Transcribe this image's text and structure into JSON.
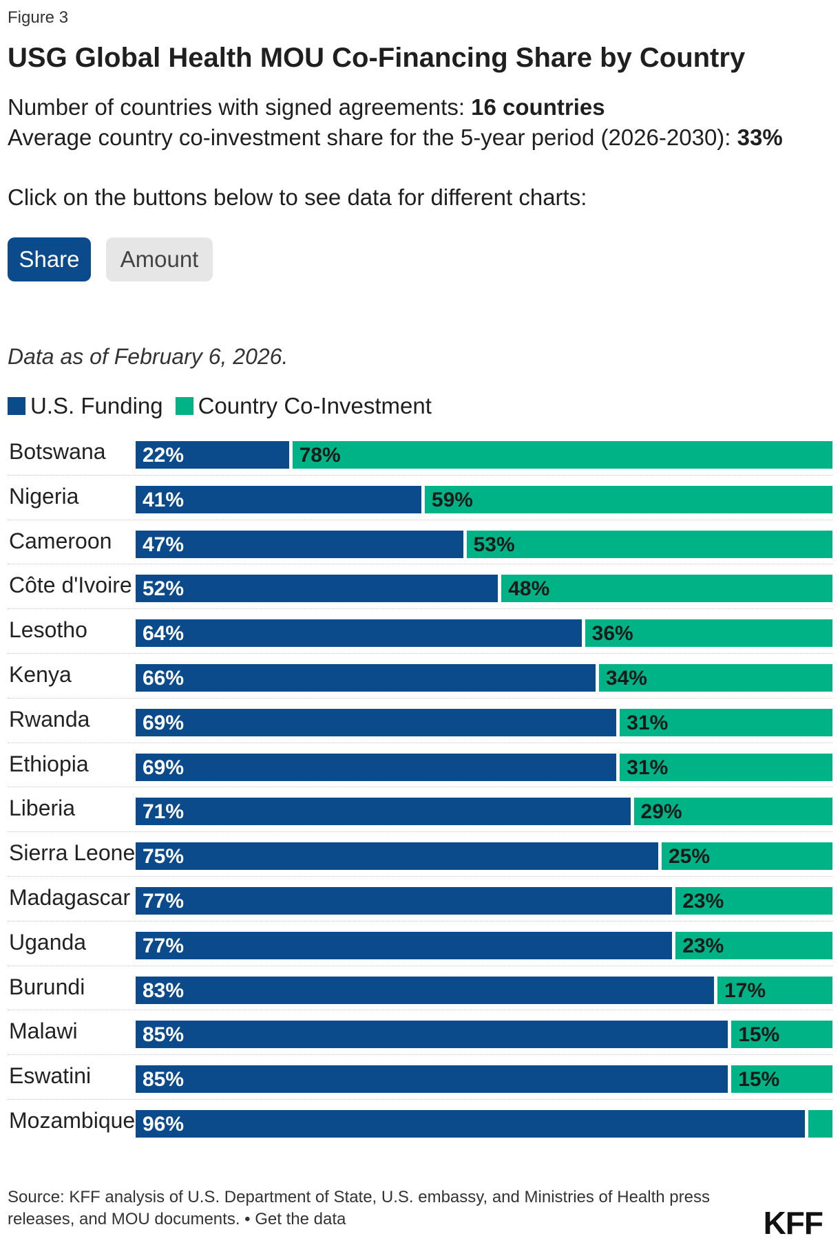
{
  "figure_label": "Figure 3",
  "title": "USG Global Health MOU Co-Financing Share by Country",
  "summary": {
    "line1_prefix": "Number of countries with signed agreements: ",
    "line1_value": "16 countries",
    "line2_prefix": "Average country co-investment share for the 5-year period (2026-2030): ",
    "line2_value": "33%"
  },
  "instructions": "Click on the buttons below to see data for different charts:",
  "buttons": {
    "share": "Share",
    "amount": "Amount",
    "active": "share"
  },
  "date_note": "Data as of February 6, 2026.",
  "colors": {
    "us_funding": "#0b4a8b",
    "co_investment": "#00b386"
  },
  "chart_data": {
    "type": "bar",
    "orientation": "horizontal",
    "stacked": true,
    "xlim": [
      0,
      100
    ],
    "unit": "%",
    "legend": [
      "U.S. Funding",
      "Country Co-Investment"
    ],
    "legend_position": "top-left",
    "categories": [
      "Botswana",
      "Nigeria",
      "Cameroon",
      "Côte d'Ivoire",
      "Lesotho",
      "Kenya",
      "Rwanda",
      "Ethiopia",
      "Liberia",
      "Sierra Leone",
      "Madagascar",
      "Uganda",
      "Burundi",
      "Malawi",
      "Eswatini",
      "Mozambique"
    ],
    "series": [
      {
        "name": "U.S. Funding",
        "values": [
          22,
          41,
          47,
          52,
          64,
          66,
          69,
          69,
          71,
          75,
          77,
          77,
          83,
          85,
          85,
          96
        ]
      },
      {
        "name": "Country Co-Investment",
        "values": [
          78,
          59,
          53,
          48,
          36,
          34,
          31,
          31,
          29,
          25,
          23,
          23,
          17,
          15,
          15,
          4
        ]
      }
    ],
    "labels": {
      "U.S. Funding": [
        "22%",
        "41%",
        "47%",
        "52%",
        "64%",
        "66%",
        "69%",
        "69%",
        "71%",
        "75%",
        "77%",
        "77%",
        "83%",
        "85%",
        "85%",
        "96%"
      ],
      "Country Co-Investment": [
        "78%",
        "59%",
        "53%",
        "48%",
        "36%",
        "34%",
        "31%",
        "31%",
        "29%",
        "25%",
        "23%",
        "23%",
        "17%",
        "15%",
        "15%",
        ""
      ]
    }
  },
  "source": {
    "text": "Source: KFF analysis of U.S. Department of State, U.S. embassy, and Ministries of Health press releases, and MOU documents. • ",
    "link": "Get the data"
  },
  "logo": "KFF"
}
